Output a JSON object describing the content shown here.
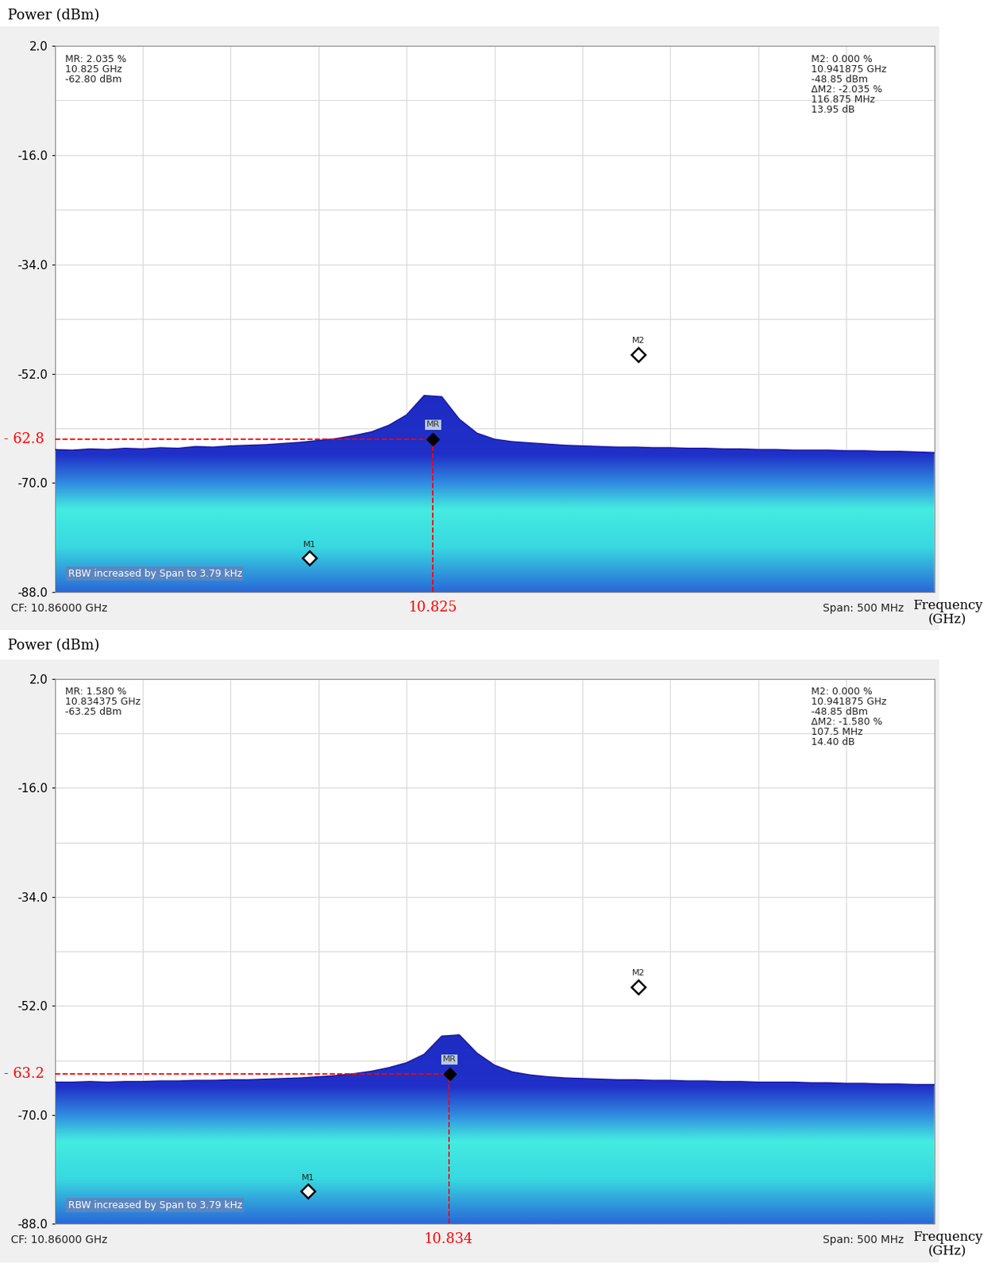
{
  "chart_data": [
    {
      "type": "line",
      "y_label": "Power (dBm)",
      "x_label": "Frequency\n(GHz)",
      "x": [
        10.61,
        10.62,
        10.63,
        10.64,
        10.65,
        10.66,
        10.67,
        10.68,
        10.69,
        10.7,
        10.71,
        10.72,
        10.73,
        10.74,
        10.75,
        10.76,
        10.77,
        10.78,
        10.79,
        10.8,
        10.81,
        10.82,
        10.83,
        10.84,
        10.85,
        10.86,
        10.87,
        10.88,
        10.89,
        10.9,
        10.91,
        10.92,
        10.93,
        10.94,
        10.95,
        10.96,
        10.97,
        10.98,
        10.99,
        11.0,
        11.01,
        11.02,
        11.03,
        11.04,
        11.05,
        11.06,
        11.07,
        11.08,
        11.09,
        11.1,
        11.11
      ],
      "values": [
        -64.5,
        -64.6,
        -64.4,
        -64.5,
        -64.3,
        -64.4,
        -64.2,
        -64.3,
        -64.0,
        -64.1,
        -63.9,
        -63.8,
        -63.7,
        -63.5,
        -63.3,
        -63.0,
        -62.7,
        -62.2,
        -61.6,
        -60.5,
        -58.8,
        -55.6,
        -55.8,
        -59.5,
        -61.8,
        -62.8,
        -63.2,
        -63.4,
        -63.6,
        -63.8,
        -63.9,
        -64.0,
        -64.1,
        -64.1,
        -64.2,
        -64.2,
        -64.3,
        -64.3,
        -64.4,
        -64.4,
        -64.5,
        -64.5,
        -64.6,
        -64.6,
        -64.6,
        -64.7,
        -64.7,
        -64.8,
        -64.8,
        -64.9,
        -65.0
      ],
      "color": "#1c1ca8",
      "xlim": [
        10.61,
        11.11
      ],
      "xticks": [
        10.61,
        10.66,
        10.71,
        10.76,
        10.81,
        10.86,
        10.91,
        10.96,
        11.01,
        11.06,
        11.11
      ],
      "ylim": [
        -88,
        2
      ],
      "yticks": [
        {
          "value": 2,
          "label": "2.0"
        },
        {
          "value": -16,
          "label": "-16.0"
        },
        {
          "value": -34,
          "label": "-34.0"
        },
        {
          "value": -52,
          "label": "-52.0"
        },
        {
          "value": -70,
          "label": "-70.0"
        },
        {
          "value": -88,
          "label": "-88.0"
        }
      ],
      "tick_labels": "y",
      "grid": true,
      "markers": [
        {
          "name": "M1",
          "x": 10.755,
          "y": -82.4
        },
        {
          "name": "M2",
          "x": 10.941875,
          "y": -48.85
        },
        {
          "name": "MR",
          "x": 10.825,
          "y": -62.8
        }
      ],
      "reference": {
        "x": 10.825,
        "y": -62.8,
        "x_label": "10.825",
        "y_label": "- 62.8"
      },
      "readout_left": "MR: 2.035 %\n10.825 GHz\n-62.80 dBm",
      "readout_right": "M2: 0.000 %\n10.941875 GHz\n-48.85 dBm\nΔM2: -2.035 %\n116.875 MHz\n13.95 dB",
      "center_label": "CF: 10.86000 GHz",
      "span_label": "Span: 500 MHz",
      "rbw_note": "RBW increased by Span to 3.79 kHz"
    },
    {
      "type": "line",
      "y_label": "Power (dBm)",
      "x_label": "Frequency\n(GHz)",
      "x": [
        10.61,
        10.62,
        10.63,
        10.64,
        10.65,
        10.66,
        10.67,
        10.68,
        10.69,
        10.7,
        10.71,
        10.72,
        10.73,
        10.74,
        10.75,
        10.76,
        10.77,
        10.78,
        10.79,
        10.8,
        10.81,
        10.82,
        10.83,
        10.84,
        10.85,
        10.86,
        10.87,
        10.88,
        10.89,
        10.9,
        10.91,
        10.92,
        10.93,
        10.94,
        10.95,
        10.96,
        10.97,
        10.98,
        10.99,
        11.0,
        11.01,
        11.02,
        11.03,
        11.04,
        11.05,
        11.06,
        11.07,
        11.08,
        11.09,
        11.1,
        11.11
      ],
      "values": [
        -64.6,
        -64.6,
        -64.5,
        -64.6,
        -64.5,
        -64.5,
        -64.4,
        -64.4,
        -64.3,
        -64.3,
        -64.2,
        -64.2,
        -64.1,
        -64.0,
        -63.9,
        -63.7,
        -63.5,
        -63.2,
        -62.8,
        -62.2,
        -61.4,
        -60.0,
        -57.0,
        -56.8,
        -59.8,
        -61.8,
        -62.9,
        -63.4,
        -63.7,
        -63.9,
        -64.0,
        -64.1,
        -64.2,
        -64.2,
        -64.3,
        -64.3,
        -64.4,
        -64.4,
        -64.5,
        -64.5,
        -64.6,
        -64.6,
        -64.6,
        -64.7,
        -64.7,
        -64.8,
        -64.8,
        -64.9,
        -64.9,
        -65.0,
        -65.0
      ],
      "color": "#1c1ca8",
      "xlim": [
        10.61,
        11.11
      ],
      "xticks": [
        10.61,
        10.66,
        10.71,
        10.76,
        10.81,
        10.86,
        10.91,
        10.96,
        11.01,
        11.06,
        11.11
      ],
      "ylim": [
        -88,
        2
      ],
      "yticks": [
        {
          "value": 2,
          "label": "2.0"
        },
        {
          "value": -16,
          "label": "-16.0"
        },
        {
          "value": -34,
          "label": "-34.0"
        },
        {
          "value": -52,
          "label": "-52.0"
        },
        {
          "value": -70,
          "label": "-70.0"
        },
        {
          "value": -88,
          "label": "-88.0"
        }
      ],
      "tick_labels": "y",
      "grid": true,
      "markers": [
        {
          "name": "M1",
          "x": 10.754,
          "y": -82.6
        },
        {
          "name": "M2",
          "x": 10.941875,
          "y": -48.85
        },
        {
          "name": "MR",
          "x": 10.834375,
          "y": -63.25
        }
      ],
      "reference": {
        "x": 10.834,
        "y": -63.2,
        "x_label": "10.834",
        "y_label": "- 63.2"
      },
      "readout_left": "MR: 1.580 %\n10.834375 GHz\n-63.25 dBm",
      "readout_right": "M2: 0.000 %\n10.941875 GHz\n-48.85 dBm\nΔM2: -1.580 %\n107.5 MHz\n14.40 dB",
      "center_label": "CF: 10.86000 GHz",
      "span_label": "Span: 500 MHz",
      "rbw_note": "RBW increased by Span to 3.79 kHz"
    }
  ]
}
